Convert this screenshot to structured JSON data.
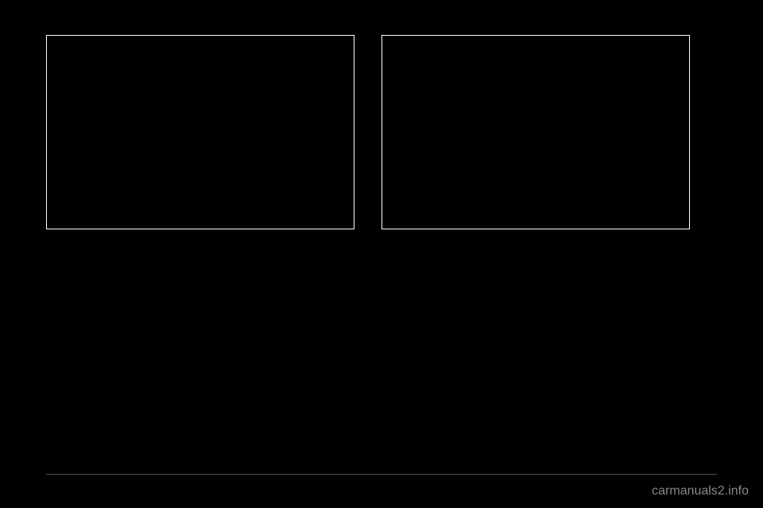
{
  "layout": {
    "background_color": "#000000",
    "border_color": "#ffffff",
    "divider_color": "#555555",
    "watermark_color": "#888888"
  },
  "boxes": {
    "left": {
      "content": ""
    },
    "right": {
      "content": ""
    }
  },
  "watermark": {
    "text": "carmanuals2.info",
    "fontsize": 16
  }
}
